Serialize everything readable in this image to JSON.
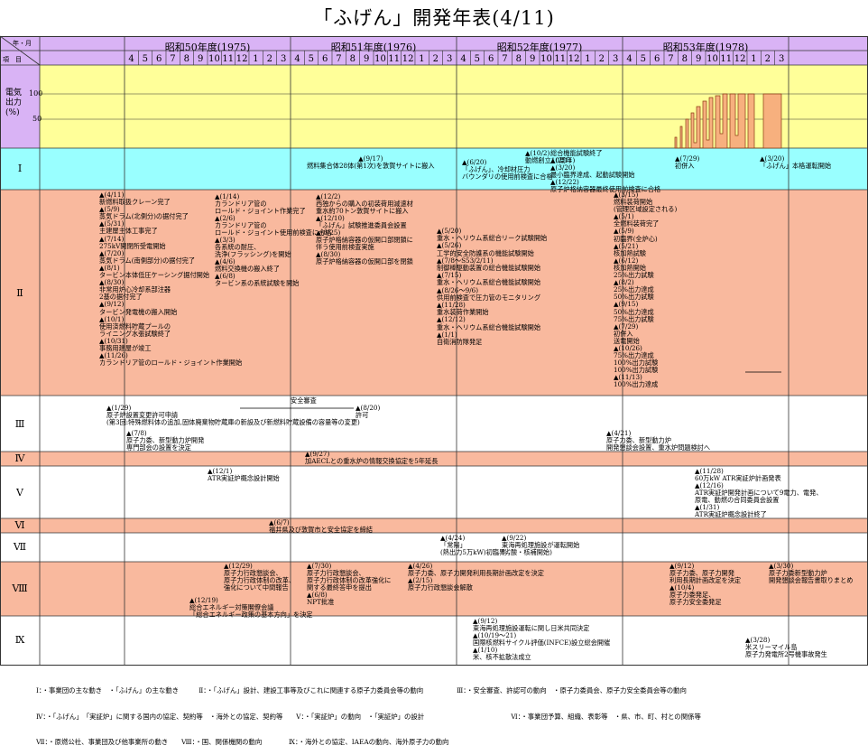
{
  "title": "「ふげん」開発年表(4/11)",
  "header": {
    "corner_top": "年・月",
    "corner_bottom": "項　目",
    "fiscal_years": [
      "昭和50年度(1975)",
      "昭和51年度(1976)",
      "昭和52年度(1977)",
      "昭和53年度(1978)"
    ],
    "months": [
      "4",
      "5",
      "6",
      "7",
      "8",
      "9",
      "10",
      "11",
      "12",
      "1",
      "2",
      "3"
    ]
  },
  "colors": {
    "header_band": "#d9b3f5",
    "power_band": "#ffff99",
    "row_I": "#99ffff",
    "row_pink": "#f9b99e",
    "row_white": "#ffffff"
  },
  "chart_data": {
    "type": "timeline",
    "power_panel": {
      "label": "電気出力(%)",
      "y_ticks": [
        "100",
        "50"
      ],
      "ylim": [
        0,
        100
      ]
    },
    "rows": [
      {
        "id": "I",
        "label": "Ⅰ",
        "events": [
          {
            "text": "▲(9/17)\n燃料集合体28体(第1次)を敦賀サイトに搬入"
          },
          {
            "text": "▲(10/2)\n動燃創立10周年"
          },
          {
            "text": "▲(6/20)\n「ふげん」、冷却材圧力\nバウンダリの使用前検査に合格"
          },
          {
            "text": "総合機能試験終了\n▲(2/11)\n▲(3/20)\n最小臨界達成、起動試験開始\n▲(12/22)\n原子炉格納容器最終使用前検査に合格"
          },
          {
            "text": "▲(7/29)\n初併入"
          },
          {
            "text": "▲(3/20)\n「ふげん」本格運転開始"
          }
        ]
      },
      {
        "id": "II",
        "label": "Ⅱ",
        "events": [
          {
            "text": "▲(4/11)\n新燃料取扱クレーン完了\n▲(5/9)\n蒸気ドラム(北側分)の据付完了\n▲(5/31)\n主建屋主体工事完了\n▲(7/14)\n275kV開閉所受電開始\n▲(7/20)\n蒸気ドラム(南側部分)の据付完了\n▲(8/1)\nタービン本体低圧ケーシング据付開始\n▲(8/30)\n非常用炉心冷却系部注器\n2基の据付完了\n▲(9/12)\nタービン発電機の搬入開始\n▲(10/1)\n使用済燃料貯蔵プールの\nライニング水張試験終了\n▲(10/31)\n事務用建屋が竣工\n▲(11/26)\nカランドリア管のロールド・ジョイント作業開始"
          },
          {
            "text": "▲(1/14)\nカランドリア管の\nロールド・ジョイント作業完了\n▲(2/6)\nカランドリア管の\nロールド・ジョイント使用前検査に合格\n▲(3/3)\n各系統の耐圧、\n洗浄(フラッシング)を開始\n▲(4/6)\n燃料交換機の搬入終了\n▲(6/8)\nタービン系の系統試験を開始"
          },
          {
            "text": "▲(12/2)\n西独からの購入の初装荷用減速材\n重水約70トン敦賀サイトに搬入\n▲(12/10)\n「ふげん」試験推進委員会設置\n▲(8/25)\n原子炉格納容器の仮開口部閉鎖に\n伴う使用前検査実施\n▲(8/30)\n原子炉格納容器の仮開口部を閉鎖"
          },
          {
            "text": "▲(5/20)\n重水・ヘリウム系総合リーク試験開始\n▲(5/26)\n工学的安全防護系の機能試験開始\n▲(7/8〜S53/2/11)\n制御棒駆動装置の総合機能試験開始\n▲(7/15)\n重水・ヘリウム系総合機能試験開始\n▲(8/26〜9/6)\n供用前検査で圧力管のモニタリング\n▲(11/28)\n重水装荷作業開始\n▲(12/12)\n重水・ヘリウム系総合機能試験開始\n▲(1/1)\n自衛消防隊発足"
          },
          {
            "text": "▲(3/15)\n燃料装荷開始\n(管理区域設定される)\n▲(5/1)\n全燃料装荷完了\n▲(5/9)\n初臨界(全炉心)\n▲(5/21)\n核加熱試験\n▲(6/12)\n核加熱開始\n25%出力試験\n▲(8/2)\n25%出力達成\n50%出力試験\n▲(9/15)\n50%出力達成\n75%出力試験\n▲(7/29)\n初併入\n送電開始\n▲(10/26)\n75%出力達成\n100%出力試験\n100%出力試験\n▲(11/13)\n100%出力達成"
          }
        ]
      },
      {
        "id": "III",
        "label": "Ⅲ",
        "events": [
          {
            "text": "安全審査"
          },
          {
            "text": "▲(1/29)\n原子炉設置変更許可申請\n(第3回:特殊燃料体の追加,固体廃棄物貯蔵庫の新設及び新燃料貯蔵設備の容量等の変更)"
          },
          {
            "text": "▲(8/20)\n許可"
          },
          {
            "text": "▲(7/8)\n原子力委、新型動力炉開発\n専門部会の設置を決定"
          },
          {
            "text": "▲(4/21)\n原子力委、新型動力炉\n開発懇談会設置、重水炉問題検討へ"
          }
        ]
      },
      {
        "id": "IV",
        "label": "Ⅳ",
        "events": [
          {
            "text": "▲(9/27)\n加AECLとの重水炉の情報交換協定を5年延長"
          }
        ]
      },
      {
        "id": "V",
        "label": "Ⅴ",
        "events": [
          {
            "text": "▲(12/1)\nATR実証炉概念設計開始"
          },
          {
            "text": "▲(11/28)\n60万kW ATR実証炉計画発表\n▲(12/16)\nATR実証炉開発計画について9電力、電発、\n原電、動燃の合同委員会設置\n▲(1/31)\nATR実証炉概念設計終了"
          }
        ]
      },
      {
        "id": "VI",
        "label": "Ⅵ",
        "events": [
          {
            "text": "▲(6/7)\n福井県及び敦賀市と安全協定を締結"
          }
        ]
      },
      {
        "id": "VII",
        "label": "Ⅶ",
        "events": [
          {
            "text": "▲(4/24)\n「常陽」\n(熱出力5万kW)初臨界"
          },
          {
            "text": "▲(9/22)\n東海再処理施設が運転開始\n(劣酸・核補開始)"
          }
        ]
      },
      {
        "id": "VIII",
        "label": "Ⅷ",
        "events": [
          {
            "text": "▲(12/29)\n原子力行政懇談会、\n原子力行政体制の改革、\n強化について中間報告"
          },
          {
            "text": "▲(7/30)\n原子力行政懇談会、\n原子力行政体制の改革強化に\n関する最終答申を提出\n▲(6/8)\nNPT批准"
          },
          {
            "text": "▲(4/26)\n原子力委、原子力開発利用長期計画改定を決定\n▲(2/15)\n原子力行政懇談会解散"
          },
          {
            "text": "▲(9/12)\n原子力委、原子力開発\n利用長期計画改定を決定\n▲(10/4)\n原子力委発足、\n原子力安全委発足"
          },
          {
            "text": "▲(3/30)\n原子力委新型動力炉\n開発懇談会報告書取りまとめ"
          },
          {
            "text": "▲(12/19)\n総合エネルギー対策閣僚会議\n「総合エネルギー政策の基本方向」を決定"
          }
        ]
      },
      {
        "id": "IX",
        "label": "Ⅸ",
        "events": [
          {
            "text": "▲(9/12)\n東海再処理施設運転に関し日米共同決定\n▲(10/19〜21)\n国際核燃料サイクル評価(INFCE)設立総会開催\n▲(1/10)\n米、核不拡散法成立"
          },
          {
            "text": "▲(3/28)\n米スリーマイル島\n原子力発電所2号機事故発生"
          }
        ]
      }
    ]
  },
  "legend": {
    "line1": "Ⅰ：・事業団の主な動き　・「ふげん」の主な動き　　　Ⅱ：・「ふげん」設計、建設工事等及びこれに関連する原子力委員会等の動向　　　　　Ⅲ：・安全審査、許認可の動向　・原子力委員会、原子力安全委員会等の動向",
    "line2": "Ⅳ：・「ふげん」　「実証炉」に関する国内の協定、契約等　・海外との協定、契約等　　Ⅴ：・「実証炉」の動向　・「実証炉」の設計　　　　　　　　　　　　　Ⅵ：・事業団予算、組織、表彰等　・県、市、町、村との関係等",
    "line3": "Ⅶ：・原燃公社、事業団及び他事業所の動き　　Ⅷ：・国、関係機関の動向　　　　Ⅸ：・海外との協定、IAEAの動向、海外原子力の動向"
  }
}
